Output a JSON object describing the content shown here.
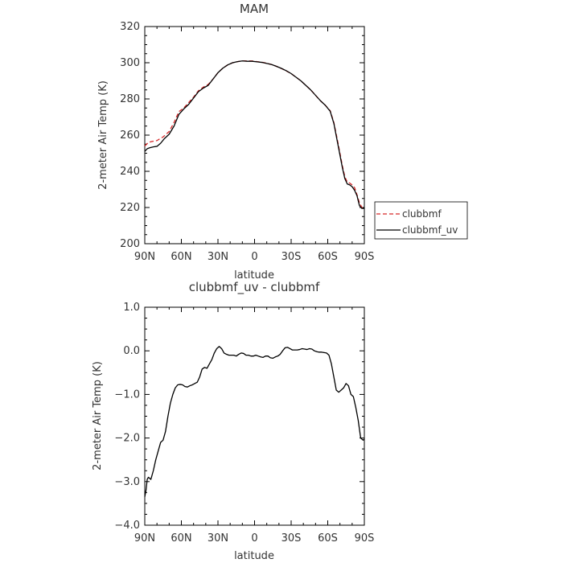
{
  "chart_data": [
    {
      "type": "line",
      "title": "MAM",
      "xlabel": "latitude",
      "ylabel": "2-meter Air Temp (K)",
      "xlim": [
        90,
        -90
      ],
      "ylim": [
        200,
        320
      ],
      "xticks": [
        {
          "value": 90,
          "label": "90N"
        },
        {
          "value": 60,
          "label": "60N"
        },
        {
          "value": 30,
          "label": "30N"
        },
        {
          "value": 0,
          "label": "0"
        },
        {
          "value": -30,
          "label": "30S"
        },
        {
          "value": -60,
          "label": "60S"
        },
        {
          "value": -90,
          "label": "90S"
        }
      ],
      "yticks": [
        200,
        220,
        240,
        260,
        280,
        300,
        320
      ],
      "legend": "right",
      "series": [
        {
          "name": "clubbmf",
          "color": "#d62728",
          "dash": true,
          "x": [
            90,
            87,
            84,
            80,
            75,
            70,
            66,
            62,
            58,
            54,
            50,
            46,
            42,
            38,
            34,
            30,
            26,
            22,
            18,
            14,
            10,
            6,
            2,
            -2,
            -6,
            -10,
            -14,
            -18,
            -22,
            -26,
            -30,
            -34,
            -38,
            -42,
            -46,
            -50,
            -54,
            -58,
            -62,
            -65,
            -68,
            -70,
            -72,
            -74,
            -76,
            -78,
            -80,
            -82,
            -84,
            -86,
            -88,
            -90
          ],
          "values": [
            254,
            256,
            256.5,
            257,
            259,
            262,
            267,
            273,
            275,
            278,
            281,
            284.5,
            286.5,
            288,
            291,
            294.5,
            297,
            298.8,
            300,
            300.6,
            301,
            301,
            301,
            300.6,
            300.3,
            299.7,
            299,
            298,
            296.8,
            295.5,
            294,
            292,
            290,
            287.5,
            285,
            282,
            279,
            276.5,
            273.5,
            267,
            257,
            250,
            243,
            237,
            234,
            233.5,
            232.5,
            231,
            227,
            222.5,
            220,
            219.5
          ]
        },
        {
          "name": "clubbmf_uv",
          "color": "#000000",
          "dash": false,
          "x": [
            90,
            88,
            86,
            83,
            80,
            77,
            74,
            70,
            66,
            62,
            58,
            54,
            50,
            46,
            42,
            38,
            34,
            30,
            26,
            22,
            18,
            14,
            10,
            6,
            2,
            -2,
            -6,
            -10,
            -14,
            -18,
            -22,
            -26,
            -30,
            -34,
            -38,
            -42,
            -46,
            -50,
            -54,
            -58,
            -62,
            -65,
            -68,
            -70,
            -72,
            -74,
            -76,
            -78,
            -80,
            -82,
            -84,
            -86,
            -88,
            -90
          ],
          "values": [
            251,
            252.5,
            253,
            253.5,
            253.8,
            255.5,
            258,
            260.5,
            265,
            271.5,
            274.5,
            277,
            280.5,
            284,
            286,
            287.5,
            291,
            294.5,
            297,
            298.8,
            300,
            300.6,
            301,
            300.8,
            300.8,
            300.5,
            300.2,
            299.6,
            299,
            298,
            296.9,
            295.6,
            294,
            292,
            290,
            287.5,
            285,
            282,
            279,
            276.5,
            273.2,
            266.5,
            256,
            249,
            242,
            236,
            233,
            232.5,
            231.5,
            229.5,
            226.5,
            221,
            219.5,
            219.5
          ]
        }
      ]
    },
    {
      "type": "line",
      "title": "clubbmf_uv - clubbmf",
      "xlabel": "latitude",
      "ylabel": "2-meter Air Temp (K)",
      "xlim": [
        90,
        -90
      ],
      "ylim": [
        -4,
        1
      ],
      "xticks": [
        {
          "value": 90,
          "label": "90N"
        },
        {
          "value": 60,
          "label": "60N"
        },
        {
          "value": 30,
          "label": "30N"
        },
        {
          "value": 0,
          "label": "0"
        },
        {
          "value": -30,
          "label": "30S"
        },
        {
          "value": -60,
          "label": "60S"
        },
        {
          "value": -90,
          "label": "90S"
        }
      ],
      "yticks": [
        {
          "value": 1,
          "label": "1.0"
        },
        {
          "value": 0,
          "label": "0.0"
        },
        {
          "value": -1,
          "label": "−1.0"
        },
        {
          "value": -2,
          "label": "−2.0"
        },
        {
          "value": -3,
          "label": "−3.0"
        },
        {
          "value": -4,
          "label": "−4.0"
        }
      ],
      "series": [
        {
          "name": "",
          "color": "#000000",
          "dash": false,
          "x": [
            90,
            89,
            88,
            87,
            85,
            83,
            81,
            79,
            77,
            75,
            73,
            71,
            69,
            67,
            65,
            63,
            61,
            59,
            57,
            55,
            53,
            51,
            49,
            47,
            45,
            43,
            41,
            39,
            37,
            35,
            33,
            31,
            29,
            27,
            25,
            23,
            21,
            19,
            17,
            15,
            13,
            11,
            9,
            7,
            5,
            3,
            1,
            -1,
            -3,
            -5,
            -7,
            -9,
            -11,
            -13,
            -15,
            -17,
            -19,
            -21,
            -23,
            -25,
            -27,
            -29,
            -31,
            -33,
            -35,
            -37,
            -39,
            -41,
            -43,
            -45,
            -47,
            -49,
            -51,
            -53,
            -55,
            -57,
            -59,
            -61,
            -63,
            -65,
            -67,
            -69,
            -71,
            -73,
            -75,
            -77,
            -79,
            -81,
            -83,
            -85,
            -87,
            -89,
            -90
          ],
          "values": [
            -3.35,
            -3.2,
            -2.95,
            -2.9,
            -2.95,
            -2.75,
            -2.5,
            -2.3,
            -2.1,
            -2.05,
            -1.85,
            -1.5,
            -1.2,
            -1.0,
            -0.85,
            -0.78,
            -0.77,
            -0.78,
            -0.82,
            -0.83,
            -0.8,
            -0.78,
            -0.75,
            -0.72,
            -0.6,
            -0.42,
            -0.38,
            -0.4,
            -0.3,
            -0.2,
            -0.05,
            0.05,
            0.1,
            0.05,
            -0.05,
            -0.08,
            -0.1,
            -0.1,
            -0.1,
            -0.12,
            -0.08,
            -0.05,
            -0.06,
            -0.1,
            -0.1,
            -0.12,
            -0.12,
            -0.1,
            -0.12,
            -0.14,
            -0.15,
            -0.12,
            -0.12,
            -0.16,
            -0.17,
            -0.14,
            -0.12,
            -0.08,
            0.0,
            0.07,
            0.08,
            0.05,
            0.02,
            0.02,
            0.02,
            0.03,
            0.05,
            0.04,
            0.03,
            0.05,
            0.04,
            0.0,
            -0.02,
            -0.03,
            -0.03,
            -0.04,
            -0.05,
            -0.1,
            -0.3,
            -0.6,
            -0.9,
            -0.95,
            -0.9,
            -0.85,
            -0.75,
            -0.8,
            -1.0,
            -1.05,
            -1.3,
            -1.6,
            -2.0,
            -2.05,
            -2.02
          ]
        }
      ]
    }
  ]
}
